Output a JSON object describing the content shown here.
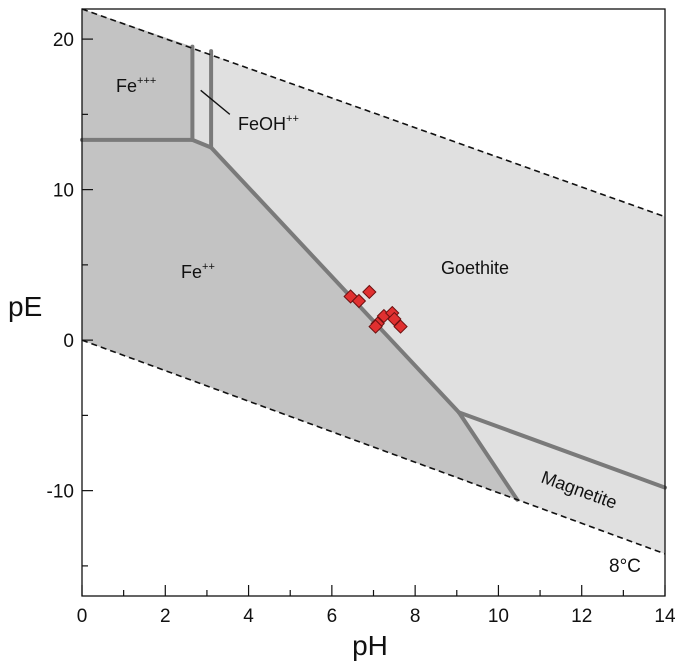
{
  "chart_data": {
    "type": "scatter",
    "xlabel": "pH",
    "ylabel": "pE",
    "xlim": [
      0,
      14
    ],
    "ylim": [
      -17,
      22
    ],
    "xticks": [
      0,
      2,
      4,
      6,
      8,
      10,
      12,
      14
    ],
    "yticks": [
      -10,
      0,
      10,
      20
    ],
    "xtick_labels": [
      "0",
      "2",
      "4",
      "6",
      "8",
      "10",
      "12",
      "14"
    ],
    "ytick_labels": [
      "-10",
      "0",
      "10",
      "20"
    ],
    "grid": false,
    "temperature_label": "8°C",
    "region_labels": {
      "fe3": "Fe",
      "fe3_charge": "+++",
      "feoh": "FeOH",
      "feoh_charge": "++",
      "fe2": "Fe",
      "fe2_charge": "++",
      "goethite": "Goethite",
      "magnetite": "Magnetite"
    },
    "water_stability_lines": {
      "upper": [
        [
          0,
          22
        ],
        [
          14,
          8.2
        ]
      ],
      "lower": [
        [
          0,
          0
        ],
        [
          14,
          -14.2
        ]
      ]
    },
    "boundaries": [
      [
        [
          0,
          13.3
        ],
        [
          2.65,
          13.3
        ]
      ],
      [
        [
          2.65,
          13.3
        ],
        [
          2.65,
          19.5
        ]
      ],
      [
        [
          2.65,
          13.3
        ],
        [
          3.1,
          12.8
        ]
      ],
      [
        [
          3.1,
          12.8
        ],
        [
          3.1,
          19.2
        ]
      ],
      [
        [
          3.1,
          12.8
        ],
        [
          9.05,
          -4.8
        ]
      ],
      [
        [
          9.05,
          -4.8
        ],
        [
          14,
          -9.8
        ]
      ],
      [
        [
          9.05,
          -4.8
        ],
        [
          10.45,
          -10.6
        ]
      ]
    ],
    "series": [
      {
        "points": [
          [
            6.45,
            2.9
          ],
          [
            6.65,
            2.6
          ],
          [
            6.9,
            3.2
          ],
          [
            7.1,
            1.1
          ],
          [
            7.25,
            1.6
          ],
          [
            7.45,
            1.8
          ],
          [
            7.5,
            1.4
          ],
          [
            7.65,
            0.9
          ],
          [
            7.05,
            0.9
          ]
        ]
      }
    ],
    "colors": {
      "fe_region": "#c3c3c3",
      "goethite_region": "#e0e0e0",
      "boundary": "#7a7a7a",
      "point_fill": "#e03030",
      "point_stroke": "#6a1010"
    }
  }
}
